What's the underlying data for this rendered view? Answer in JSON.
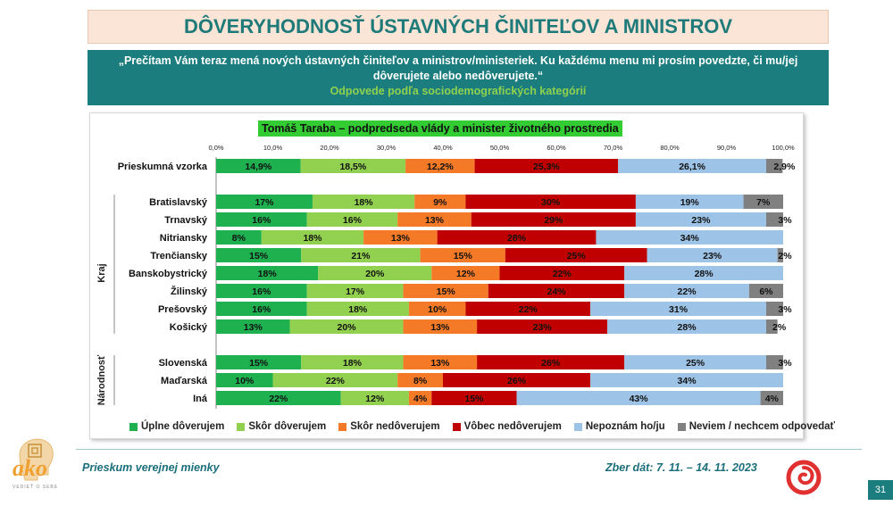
{
  "header": {
    "title": "DÔVERYHODNOSŤ ÚSTAVNÝCH ČINITEĽOV A MINISTROV",
    "question": "„Prečítam Vám teraz mená nových ústavných činiteľov a ministrov/ministeriek. Ku každému menu mi prosím povedzte, či mu/jej dôverujete alebo nedôverujete.“",
    "subtitle": "Odpovede podľa sociodemografických kategórií"
  },
  "footer": {
    "survey_name": "Prieskum verejnej mienky",
    "collection_dates": "Zber dát: 7. 11. – 14. 11. 2023",
    "page_number": "31",
    "logo_text": "ako",
    "logo_tagline": "VEDIEŤ O SEBE"
  },
  "colors": {
    "teal": "#1b7d7d",
    "dark_green": "#1fb050",
    "light_green": "#92d050",
    "orange": "#f47a28",
    "dark_red": "#c00000",
    "light_blue": "#9dc3e6",
    "gray": "#808080"
  },
  "chart_data": {
    "type": "bar",
    "orientation": "horizontal-stacked-100",
    "title": "Tomáš Taraba – podpredseda vlády a minister životného prostredia",
    "x_ticks": [
      "0,0%",
      "10,0%",
      "20,0%",
      "30,0%",
      "40,0%",
      "50,0%",
      "60,0%",
      "70,0%",
      "80,0%",
      "90,0%",
      "100,0%"
    ],
    "xlim": [
      0,
      100
    ],
    "legend_position": "bottom",
    "series_names": [
      "Úplne dôverujem",
      "Skôr dôverujem",
      "Skôr nedôverujem",
      "Vôbec nedôverujem",
      "Nepoznám ho/ju",
      "Neviem / nechcem odpovedať"
    ],
    "groups": [
      {
        "label": "",
        "rows": [
          {
            "category": "Prieskumná vzorka",
            "values": [
              14.9,
              18.5,
              12.2,
              25.3,
              26.1,
              2.9
            ],
            "labels": [
              "14,9%",
              "18,5%",
              "12,2%",
              "25,3%",
              "26,1%",
              "2,9%"
            ]
          }
        ]
      },
      {
        "label": "Kraj",
        "rows": [
          {
            "category": "Bratislavský",
            "values": [
              17,
              18,
              9,
              30,
              19,
              7
            ],
            "labels": [
              "17%",
              "18%",
              "9%",
              "30%",
              "19%",
              "7%"
            ]
          },
          {
            "category": "Trnavský",
            "values": [
              16,
              16,
              13,
              29,
              23,
              3
            ],
            "labels": [
              "16%",
              "16%",
              "13%",
              "29%",
              "23%",
              "3%"
            ]
          },
          {
            "category": "Nitriansky",
            "values": [
              8,
              18,
              13,
              28,
              34,
              0
            ],
            "labels": [
              "8%",
              "18%",
              "13%",
              "28%",
              "34%",
              ""
            ]
          },
          {
            "category": "Trenčiansky",
            "values": [
              15,
              21,
              15,
              25,
              23,
              2
            ],
            "labels": [
              "15%",
              "21%",
              "15%",
              "25%",
              "23%",
              "2%"
            ]
          },
          {
            "category": "Banskobystrický",
            "values": [
              18,
              20,
              12,
              22,
              28,
              0
            ],
            "labels": [
              "18%",
              "20%",
              "12%",
              "22%",
              "28%",
              ""
            ]
          },
          {
            "category": "Žilinský",
            "values": [
              16,
              17,
              15,
              24,
              22,
              6
            ],
            "labels": [
              "16%",
              "17%",
              "15%",
              "24%",
              "22%",
              "6%"
            ]
          },
          {
            "category": "Prešovský",
            "values": [
              16,
              18,
              10,
              22,
              31,
              3
            ],
            "labels": [
              "16%",
              "18%",
              "10%",
              "22%",
              "31%",
              "3%"
            ]
          },
          {
            "category": "Košický",
            "values": [
              13,
              20,
              13,
              23,
              28,
              2
            ],
            "labels": [
              "13%",
              "20%",
              "13%",
              "23%",
              "28%",
              "2%"
            ]
          }
        ]
      },
      {
        "label": "Národnosť",
        "rows": [
          {
            "category": "Slovenská",
            "values": [
              15,
              18,
              13,
              26,
              25,
              3
            ],
            "labels": [
              "15%",
              "18%",
              "13%",
              "26%",
              "25%",
              "3%"
            ]
          },
          {
            "category": "Maďarská",
            "values": [
              10,
              22,
              8,
              26,
              34,
              0
            ],
            "labels": [
              "10%",
              "22%",
              "8%",
              "26%",
              "34%",
              ""
            ]
          },
          {
            "category": "Iná",
            "values": [
              22,
              12,
              4,
              15,
              43,
              4
            ],
            "labels": [
              "22%",
              "12%",
              "4%",
              "15%",
              "43%",
              "4%"
            ]
          }
        ]
      }
    ]
  }
}
